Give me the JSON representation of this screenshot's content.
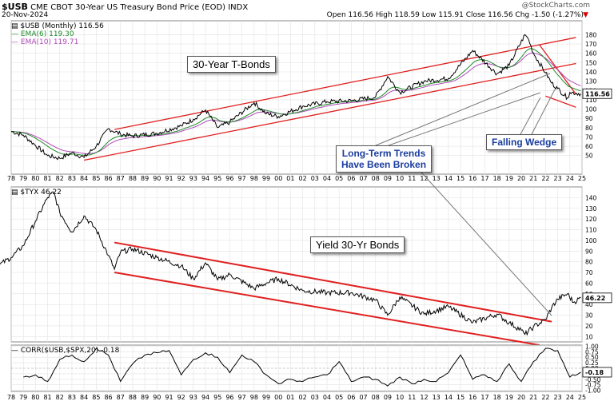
{
  "header": {
    "symbol": "$USB",
    "description": "CME CBOT 30-Year US Treasury Bond Price (EOD)",
    "exchange": "INDX",
    "date": "20-Nov-2024",
    "ohlc": "Open 116.56  High 118.59  Low 115.91  Close 116.56  Chg -1.50 (-1.27%)",
    "watermark": "@StockCharts.com"
  },
  "colors": {
    "price": "#000000",
    "ema6": "#1f8a2b",
    "ema10": "#b04ab8",
    "trendline": "#e02020",
    "annotation_text": "#1a3d9e"
  },
  "annotations": {
    "tbonds": "30-Year T-Bonds",
    "yield": "Yield 30-Yr Bonds",
    "trends_line1": "Long-Term Trends",
    "trends_line2": "Have Been Broken",
    "wedge": "Falling Wedge"
  },
  "chart_data": [
    {
      "type": "line",
      "panel": "top",
      "series": [
        {
          "name": "$USB (Monthly) 116.56",
          "role": "price",
          "key": "usb"
        },
        {
          "name": "EMA(6) 119.30",
          "role": "ema6",
          "key": "ema6"
        },
        {
          "name": "EMA(10) 119.71",
          "role": "ema10",
          "key": "ema10"
        }
      ],
      "x": [
        1978,
        1979,
        1980,
        1981,
        1982,
        1983,
        1984,
        1985,
        1986,
        1987,
        1988,
        1990,
        1992,
        1993,
        1994,
        1995,
        1996,
        1998,
        1999,
        2000,
        2002,
        2004,
        2006,
        2008,
        2009,
        2010,
        2012,
        2014,
        2016,
        2018,
        2019,
        2020.3,
        2020.6,
        2021,
        2022,
        2022.5,
        2023,
        2023.8,
        2024,
        2024.9
      ],
      "usb": [
        76,
        72,
        61,
        50,
        47,
        53,
        48,
        60,
        79,
        73,
        71,
        74,
        82,
        89,
        99,
        80,
        86,
        107,
        95,
        92,
        103,
        108,
        109,
        113,
        135,
        118,
        130,
        133,
        163,
        138,
        147,
        180,
        175,
        160,
        139,
        128,
        122,
        112,
        118,
        116.56
      ],
      "ylim": [
        30,
        195
      ],
      "yticks": [
        50,
        60,
        70,
        80,
        90,
        100,
        110,
        120,
        130,
        140,
        150,
        160,
        170,
        180
      ],
      "last_label": "116.56",
      "trendlines": [
        {
          "x": [
            1984,
            2024.5
          ],
          "y": [
            45,
            149
          ],
          "color": "trendline"
        },
        {
          "x": [
            1986.5,
            2024.5
          ],
          "y": [
            78,
            177
          ],
          "color": "trendline"
        },
        {
          "x": [
            2021.5,
            2024.5
          ],
          "y": [
            169,
            116
          ],
          "color": "trendline"
        },
        {
          "x": [
            2022,
            2024.5
          ],
          "y": [
            114,
            102
          ],
          "color": "trendline"
        }
      ]
    },
    {
      "type": "line",
      "panel": "middle",
      "series": [
        {
          "name": "$TYX 46.22",
          "key": "tyx"
        }
      ],
      "x": [
        1977,
        1978,
        1979,
        1980,
        1981,
        1981.5,
        1982,
        1983,
        1984,
        1985,
        1986,
        1986.5,
        1987,
        1988,
        1990,
        1992,
        1993,
        1994,
        1995,
        1996,
        1998,
        1999,
        2000,
        2002,
        2004,
        2006,
        2008,
        2009,
        2010,
        2012,
        2014,
        2016,
        2018,
        2019,
        2020,
        2020.3,
        2021,
        2022,
        2022.5,
        2023,
        2023.8,
        2024.3,
        2024.9
      ],
      "tyx": [
        77,
        84,
        95,
        118,
        140,
        145,
        126,
        108,
        123,
        110,
        86,
        73,
        89,
        92,
        84,
        76,
        64,
        79,
        63,
        68,
        55,
        60,
        64,
        53,
        51,
        51,
        44,
        30,
        47,
        31,
        38,
        23,
        31,
        23,
        16,
        12,
        19,
        26,
        37,
        45,
        50,
        42,
        46.22
      ],
      "ylim": [
        5,
        150
      ],
      "yticks": [
        10,
        20,
        30,
        40,
        50,
        60,
        70,
        80,
        90,
        100,
        110,
        120,
        130,
        140
      ],
      "last_label": "46.22",
      "trendlines": [
        {
          "x": [
            1986.5,
            2022.5
          ],
          "y": [
            98,
            24
          ],
          "color": "trendline"
        },
        {
          "x": [
            1986.5,
            2021.5
          ],
          "y": [
            70,
            2
          ],
          "color": "trendline"
        }
      ]
    },
    {
      "type": "line",
      "panel": "bottom",
      "series": [
        {
          "name": "CORR($USB,$SPX,20) -0.18",
          "key": "corr"
        }
      ],
      "x": [
        1979,
        1980,
        1981,
        1982,
        1983,
        1984,
        1985,
        1986,
        1987,
        1988,
        1989,
        1990,
        1991,
        1992,
        1993,
        1994,
        1995,
        1996,
        1997,
        1998,
        1999,
        2000,
        2001,
        2002,
        2003,
        2004,
        2005,
        2006,
        2007,
        2008,
        2009,
        2010,
        2011,
        2012,
        2013,
        2014,
        2015,
        2016,
        2017,
        2018,
        2019,
        2020,
        2021,
        2022,
        2023,
        2024,
        2024.9
      ],
      "corr": [
        -0.4,
        -0.3,
        -0.6,
        0.4,
        0.6,
        0.3,
        0.9,
        0.6,
        -0.6,
        0.2,
        0.6,
        0.7,
        0.8,
        -0.3,
        0.4,
        0.7,
        0.5,
        -0.2,
        0.6,
        0.3,
        -0.3,
        -0.7,
        -0.5,
        -0.6,
        -0.4,
        -0.3,
        0.3,
        -0.6,
        -0.4,
        -0.5,
        -0.8,
        -0.4,
        -0.7,
        -0.5,
        -0.6,
        -0.2,
        0.6,
        -0.5,
        -0.3,
        -0.6,
        0.2,
        -0.6,
        0.3,
        0.9,
        0.8,
        -0.4,
        -0.18
      ],
      "ylim": [
        -1.05,
        1.05
      ],
      "yticks": [
        -1.0,
        -0.75,
        -0.5,
        -0.25,
        0.0,
        0.25,
        0.5,
        0.75,
        1.0
      ],
      "last_label": "-0.18"
    }
  ],
  "x_axis": {
    "labels": [
      "78",
      "79",
      "80",
      "81",
      "82",
      "83",
      "84",
      "85",
      "86",
      "87",
      "88",
      "89",
      "90",
      "91",
      "92",
      "93",
      "94",
      "95",
      "96",
      "97",
      "98",
      "99",
      "00",
      "01",
      "02",
      "03",
      "04",
      "05",
      "06",
      "07",
      "08",
      "09",
      "10",
      "11",
      "12",
      "13",
      "14",
      "15",
      "16",
      "17",
      "18",
      "19",
      "20",
      "21",
      "22",
      "23",
      "24",
      "25"
    ],
    "start": 1978,
    "end": 2025
  }
}
